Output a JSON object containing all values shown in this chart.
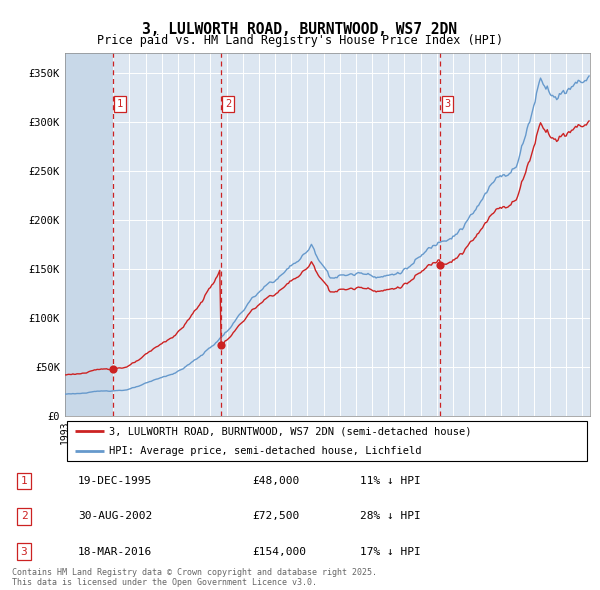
{
  "title": "3, LULWORTH ROAD, BURNTWOOD, WS7 2DN",
  "subtitle": "Price paid vs. HM Land Registry's House Price Index (HPI)",
  "legend_line1": "3, LULWORTH ROAD, BURNTWOOD, WS7 2DN (semi-detached house)",
  "legend_line2": "HPI: Average price, semi-detached house, Lichfield",
  "purchase_times": [
    1995.96,
    2002.66,
    2016.21
  ],
  "purchase_prices": [
    48000,
    72500,
    154000
  ],
  "purchase_labels": [
    "1",
    "2",
    "3"
  ],
  "purchase_info": [
    [
      "1",
      "19-DEC-1995",
      "£48,000",
      "11% ↓ HPI"
    ],
    [
      "2",
      "30-AUG-2002",
      "£72,500",
      "28% ↓ HPI"
    ],
    [
      "3",
      "18-MAR-2016",
      "£154,000",
      "17% ↓ HPI"
    ]
  ],
  "footer": "Contains HM Land Registry data © Crown copyright and database right 2025.\nThis data is licensed under the Open Government Licence v3.0.",
  "hpi_color": "#6699cc",
  "price_color": "#cc2222",
  "dashed_color": "#cc2222",
  "bg_color": "#dce6f1",
  "ylim": [
    0,
    370000
  ],
  "yticks": [
    0,
    50000,
    100000,
    150000,
    200000,
    250000,
    300000,
    350000
  ],
  "ytick_labels": [
    "£0",
    "£50K",
    "£100K",
    "£150K",
    "£200K",
    "£250K",
    "£300K",
    "£350K"
  ],
  "xmin": 1993.0,
  "xmax": 2025.5
}
